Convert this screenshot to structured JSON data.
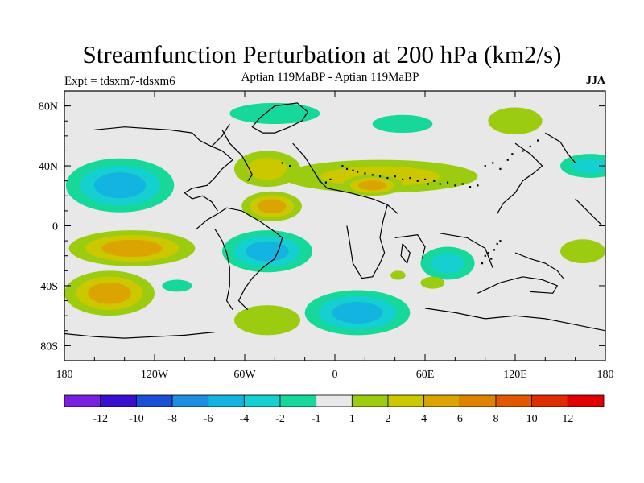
{
  "title": "Streamfunction Perturbation at 200 hPa (km2/s)",
  "experiment": "Expt = tdsxm7-tdsxm6",
  "period": "Aptian   119MaBP - Aptian   119MaBP",
  "season": "JJA",
  "map": {
    "projection": "cylindrical-equidistant",
    "lon_range": [
      -180,
      180
    ],
    "lat_range": [
      -90,
      90
    ],
    "background_color": "#e8e8e8",
    "lat_ticks": [
      {
        "value": 80,
        "label": "80N"
      },
      {
        "value": 40,
        "label": "40N"
      },
      {
        "value": 0,
        "label": "0"
      },
      {
        "value": -40,
        "label": "40S"
      },
      {
        "value": -80,
        "label": "80S"
      }
    ],
    "lon_ticks": [
      {
        "value": -180,
        "label": "180"
      },
      {
        "value": -120,
        "label": "120W"
      },
      {
        "value": -60,
        "label": "60W"
      },
      {
        "value": 0,
        "label": "0"
      },
      {
        "value": 60,
        "label": "60E"
      },
      {
        "value": 120,
        "label": "120E"
      },
      {
        "value": 180,
        "label": "180"
      }
    ]
  },
  "colorbar": {
    "colors": [
      "#7a1fe0",
      "#3a10d0",
      "#1a4fd8",
      "#1e8ee0",
      "#14b4e0",
      "#14d0d0",
      "#16d89a",
      "#e8e8e8",
      "#9ccc10",
      "#ccc800",
      "#dca400",
      "#e08200",
      "#e05800",
      "#e02c00",
      "#e00000"
    ],
    "labels": [
      "-12",
      "-10",
      "-8",
      "-6",
      "-4",
      "-2",
      "-1",
      "1",
      "2",
      "4",
      "6",
      "8",
      "10",
      "12"
    ]
  },
  "anomalies": [
    {
      "lon": -143,
      "lat": 27,
      "rx": 36,
      "ry": 18,
      "levels": [
        -1,
        -2,
        -4
      ]
    },
    {
      "lon": -45,
      "lat": 38,
      "rx": 22,
      "ry": 12,
      "levels": [
        1,
        2
      ]
    },
    {
      "lon": -42,
      "lat": 13,
      "rx": 20,
      "ry": 10,
      "levels": [
        1,
        2,
        4
      ]
    },
    {
      "lon": 30,
      "lat": 33,
      "rx": 65,
      "ry": 11,
      "levels": [
        1,
        2
      ]
    },
    {
      "lon": 25,
      "lat": 27,
      "rx": 20,
      "ry": 7,
      "levels": [
        1,
        2,
        4
      ]
    },
    {
      "lon": -40,
      "lat": 75,
      "rx": 30,
      "ry": 7,
      "levels": [
        -1
      ]
    },
    {
      "lon": 45,
      "lat": 68,
      "rx": 20,
      "ry": 6,
      "levels": [
        -1
      ]
    },
    {
      "lon": 120,
      "lat": 70,
      "rx": 18,
      "ry": 9,
      "levels": [
        1
      ]
    },
    {
      "lon": 170,
      "lat": 40,
      "rx": 20,
      "ry": 8,
      "levels": [
        -1,
        -2
      ]
    },
    {
      "lon": -135,
      "lat": -15,
      "rx": 42,
      "ry": 12,
      "levels": [
        1,
        2,
        4
      ]
    },
    {
      "lon": -150,
      "lat": -45,
      "rx": 30,
      "ry": 15,
      "levels": [
        1,
        2,
        4
      ]
    },
    {
      "lon": -105,
      "lat": -40,
      "rx": 10,
      "ry": 4,
      "levels": [
        -1
      ]
    },
    {
      "lon": -45,
      "lat": -17,
      "rx": 30,
      "ry": 14,
      "levels": [
        -1,
        -2,
        -4
      ]
    },
    {
      "lon": -45,
      "lat": -63,
      "rx": 22,
      "ry": 10,
      "levels": [
        1
      ]
    },
    {
      "lon": 15,
      "lat": -58,
      "rx": 35,
      "ry": 15,
      "levels": [
        -1,
        -2,
        -4
      ]
    },
    {
      "lon": 75,
      "lat": -25,
      "rx": 18,
      "ry": 11,
      "levels": [
        -1,
        -2
      ]
    },
    {
      "lon": 42,
      "lat": -33,
      "rx": 5,
      "ry": 3,
      "levels": [
        1
      ]
    },
    {
      "lon": 65,
      "lat": -38,
      "rx": 8,
      "ry": 4,
      "levels": [
        1
      ]
    },
    {
      "lon": 165,
      "lat": -17,
      "rx": 15,
      "ry": 8,
      "levels": [
        1
      ]
    }
  ],
  "coastlines": [
    [
      [
        -180,
        -72
      ],
      [
        -160,
        -74
      ],
      [
        -140,
        -75
      ],
      [
        -120,
        -74
      ],
      [
        -100,
        -73
      ],
      [
        -80,
        -71
      ]
    ],
    [
      [
        -160,
        64
      ],
      [
        -140,
        66
      ],
      [
        -110,
        64
      ],
      [
        -95,
        62
      ],
      [
        -90,
        57
      ],
      [
        -82,
        53
      ],
      [
        -75,
        60
      ],
      [
        -70,
        68
      ]
    ],
    [
      [
        -82,
        53
      ],
      [
        -75,
        50
      ],
      [
        -68,
        44
      ],
      [
        -75,
        38
      ],
      [
        -80,
        32
      ],
      [
        -85,
        27
      ],
      [
        -95,
        25
      ],
      [
        -100,
        22
      ],
      [
        -95,
        18
      ],
      [
        -88,
        20
      ],
      [
        -82,
        16
      ],
      [
        -78,
        10
      ]
    ],
    [
      [
        -75,
        64
      ],
      [
        -70,
        55
      ],
      [
        -62,
        47
      ],
      [
        -58,
        40
      ],
      [
        -55,
        34
      ],
      [
        -58,
        30
      ]
    ],
    [
      [
        -92,
        -2
      ],
      [
        -85,
        4
      ],
      [
        -78,
        8
      ],
      [
        -72,
        12
      ],
      [
        -62,
        10
      ],
      [
        -50,
        3
      ],
      [
        -40,
        -4
      ],
      [
        -35,
        -8
      ],
      [
        -37,
        -15
      ],
      [
        -40,
        -22
      ],
      [
        -48,
        -28
      ],
      [
        -55,
        -35
      ],
      [
        -60,
        -42
      ],
      [
        -64,
        -50
      ],
      [
        -58,
        -56
      ]
    ],
    [
      [
        -80,
        -2
      ],
      [
        -75,
        -10
      ],
      [
        -72,
        -18
      ],
      [
        -70,
        -28
      ],
      [
        -70,
        -40
      ],
      [
        -72,
        -50
      ],
      [
        -68,
        -56
      ]
    ],
    [
      [
        -50,
        72
      ],
      [
        -40,
        80
      ],
      [
        -25,
        82
      ],
      [
        -18,
        76
      ],
      [
        -22,
        70
      ],
      [
        -30,
        66
      ],
      [
        -40,
        62
      ],
      [
        -48,
        62
      ],
      [
        -55,
        66
      ],
      [
        -50,
        72
      ]
    ],
    [
      [
        -28,
        55
      ],
      [
        -20,
        46
      ],
      [
        -15,
        38
      ],
      [
        -10,
        30
      ],
      [
        -5,
        25
      ],
      [
        10,
        22
      ],
      [
        25,
        18
      ],
      [
        35,
        14
      ],
      [
        42,
        8
      ]
    ],
    [
      [
        35,
        14
      ],
      [
        32,
        3
      ],
      [
        30,
        -8
      ],
      [
        33,
        -18
      ],
      [
        30,
        -25
      ],
      [
        25,
        -34
      ],
      [
        18,
        -35
      ],
      [
        12,
        -25
      ],
      [
        10,
        -12
      ],
      [
        8,
        0
      ]
    ],
    [
      [
        45,
        -12
      ],
      [
        50,
        -18
      ],
      [
        48,
        -25
      ],
      [
        44,
        -20
      ],
      [
        45,
        -12
      ]
    ],
    [
      [
        40,
        -8
      ],
      [
        55,
        -6
      ],
      [
        60,
        -14
      ],
      [
        58,
        -22
      ]
    ],
    [
      [
        70,
        -5
      ],
      [
        88,
        -8
      ],
      [
        100,
        -15
      ],
      [
        105,
        -28
      ]
    ],
    [
      [
        95,
        -45
      ],
      [
        110,
        -38
      ],
      [
        125,
        -34
      ],
      [
        138,
        -36
      ],
      [
        148,
        -40
      ],
      [
        145,
        -45
      ],
      [
        130,
        -44
      ]
    ],
    [
      [
        60,
        -55
      ],
      [
        80,
        -58
      ],
      [
        100,
        -62
      ],
      [
        120,
        -60
      ],
      [
        140,
        -62
      ],
      [
        160,
        -66
      ],
      [
        180,
        -70
      ]
    ],
    [
      [
        120,
        -18
      ],
      [
        130,
        -22
      ],
      [
        140,
        -25
      ],
      [
        148,
        -30
      ],
      [
        152,
        -35
      ]
    ],
    [
      [
        120,
        55
      ],
      [
        130,
        48
      ],
      [
        138,
        40
      ],
      [
        132,
        35
      ],
      [
        125,
        30
      ],
      [
        120,
        22
      ],
      [
        112,
        15
      ],
      [
        108,
        8
      ]
    ],
    [
      [
        140,
        62
      ],
      [
        150,
        56
      ],
      [
        155,
        48
      ],
      [
        160,
        42
      ]
    ],
    [
      [
        160,
        18
      ],
      [
        170,
        8
      ],
      [
        178,
        0
      ]
    ]
  ],
  "islands": [
    [
      5,
      40
    ],
    [
      8,
      38
    ],
    [
      12,
      37
    ],
    [
      15,
      36
    ],
    [
      20,
      35
    ],
    [
      25,
      34
    ],
    [
      30,
      33
    ],
    [
      35,
      32
    ],
    [
      40,
      33
    ],
    [
      45,
      31
    ],
    [
      50,
      32
    ],
    [
      55,
      30
    ],
    [
      60,
      31
    ],
    [
      62,
      28
    ],
    [
      66,
      30
    ],
    [
      70,
      28
    ],
    [
      75,
      29
    ],
    [
      80,
      27
    ],
    [
      85,
      28
    ],
    [
      90,
      26
    ],
    [
      95,
      27
    ],
    [
      -10,
      30
    ],
    [
      -6,
      29
    ],
    [
      -3,
      31
    ],
    [
      -30,
      40
    ],
    [
      -35,
      42
    ],
    [
      100,
      40
    ],
    [
      105,
      42
    ],
    [
      110,
      38
    ],
    [
      115,
      44
    ],
    [
      118,
      48
    ],
    [
      125,
      50
    ],
    [
      130,
      53
    ],
    [
      135,
      57
    ],
    [
      100,
      -20
    ],
    [
      102,
      -18
    ],
    [
      104,
      -22
    ],
    [
      106,
      -16
    ],
    [
      98,
      -25
    ],
    [
      108,
      -12
    ],
    [
      110,
      -10
    ]
  ]
}
